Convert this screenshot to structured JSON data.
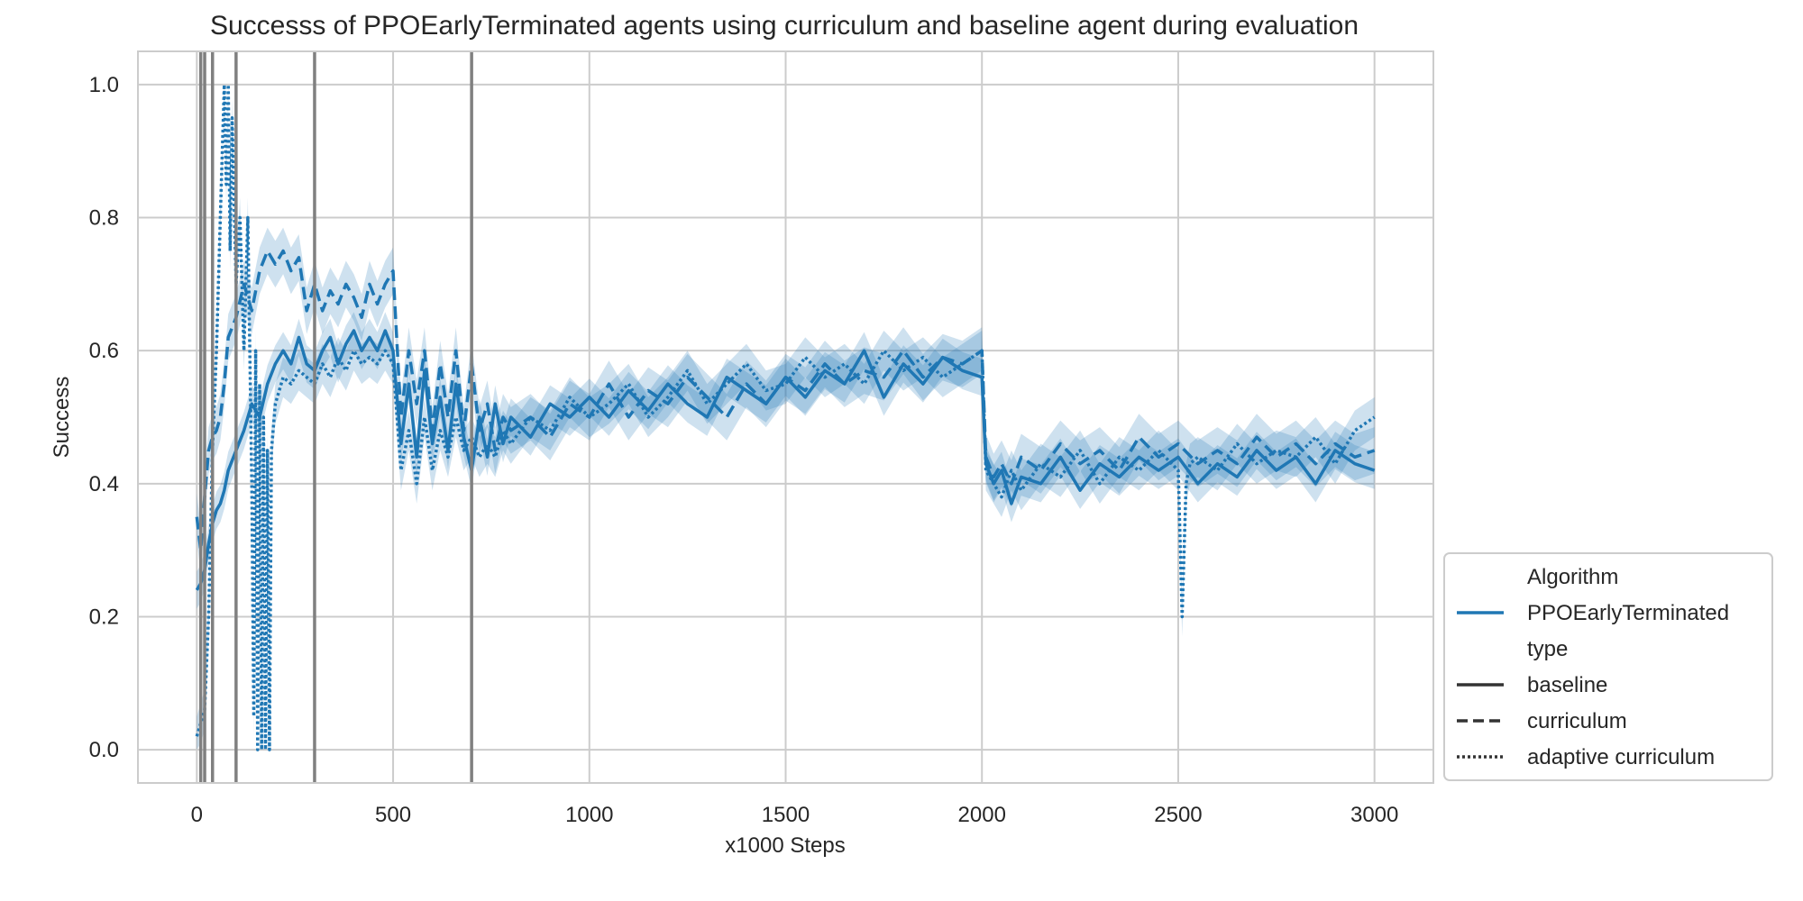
{
  "chart_data": {
    "type": "line",
    "title": "Successs of PPOEarlyTerminated agents using curriculum and baseline agent during evaluation",
    "xlabel": "x1000 Steps",
    "ylabel": "Success",
    "xlim": [
      -150,
      3150
    ],
    "ylim": [
      -0.05,
      1.05
    ],
    "xticks": [
      0,
      500,
      1000,
      1500,
      2000,
      2500,
      3000
    ],
    "xtick_labels": [
      "0",
      "500",
      "1000",
      "1500",
      "2000",
      "2500",
      "3000"
    ],
    "yticks": [
      0.0,
      0.2,
      0.4,
      0.6,
      0.8,
      1.0
    ],
    "ytick_labels": [
      "0.0",
      "0.2",
      "0.4",
      "0.6",
      "0.8",
      "1.0"
    ],
    "grid": true,
    "color": "#1f77b4",
    "vertical_lines": [
      10,
      20,
      40,
      100,
      300,
      700
    ],
    "legend": {
      "placement": "right",
      "entries": [
        {
          "label": "Algorithm",
          "kind": "header"
        },
        {
          "label": "PPOEarlyTerminated",
          "kind": "line",
          "color": "#1f77b4",
          "style": "solid"
        },
        {
          "label": "type",
          "kind": "header"
        },
        {
          "label": "baseline",
          "kind": "line",
          "color": "#333333",
          "style": "solid"
        },
        {
          "label": "curriculum",
          "kind": "line",
          "color": "#333333",
          "style": "dashed"
        },
        {
          "label": "adaptive curriculum",
          "kind": "line",
          "color": "#333333",
          "style": "dotted"
        }
      ]
    },
    "series": [
      {
        "name": "baseline",
        "style": "solid",
        "x": [
          0,
          10,
          20,
          30,
          40,
          50,
          60,
          70,
          80,
          100,
          120,
          140,
          160,
          180,
          200,
          220,
          240,
          260,
          280,
          300,
          320,
          340,
          360,
          380,
          400,
          420,
          440,
          460,
          480,
          500,
          520,
          540,
          560,
          580,
          600,
          620,
          640,
          660,
          680,
          700,
          720,
          740,
          760,
          780,
          800,
          850,
          900,
          950,
          1000,
          1050,
          1100,
          1150,
          1200,
          1250,
          1300,
          1350,
          1400,
          1450,
          1500,
          1550,
          1600,
          1650,
          1700,
          1750,
          1800,
          1850,
          1900,
          1950,
          2000,
          2010,
          2030,
          2050,
          2075,
          2100,
          2150,
          2200,
          2250,
          2300,
          2350,
          2400,
          2450,
          2500,
          2550,
          2600,
          2650,
          2700,
          2750,
          2800,
          2850,
          2900,
          2950,
          3000
        ],
        "y": [
          0.24,
          0.25,
          0.27,
          0.31,
          0.34,
          0.36,
          0.37,
          0.39,
          0.42,
          0.45,
          0.48,
          0.52,
          0.5,
          0.55,
          0.58,
          0.6,
          0.58,
          0.62,
          0.58,
          0.57,
          0.6,
          0.62,
          0.58,
          0.61,
          0.63,
          0.6,
          0.62,
          0.6,
          0.63,
          0.6,
          0.46,
          0.55,
          0.44,
          0.57,
          0.46,
          0.53,
          0.45,
          0.55,
          0.47,
          0.42,
          0.5,
          0.44,
          0.52,
          0.46,
          0.5,
          0.47,
          0.52,
          0.5,
          0.53,
          0.5,
          0.54,
          0.51,
          0.55,
          0.52,
          0.5,
          0.56,
          0.54,
          0.52,
          0.56,
          0.53,
          0.57,
          0.55,
          0.6,
          0.53,
          0.58,
          0.55,
          0.59,
          0.57,
          0.56,
          0.43,
          0.4,
          0.42,
          0.37,
          0.41,
          0.4,
          0.44,
          0.39,
          0.43,
          0.41,
          0.44,
          0.42,
          0.44,
          0.4,
          0.43,
          0.41,
          0.45,
          0.42,
          0.44,
          0.4,
          0.45,
          0.43,
          0.42
        ]
      },
      {
        "name": "curriculum",
        "style": "dashed",
        "x": [
          0,
          10,
          20,
          30,
          40,
          50,
          60,
          70,
          80,
          100,
          120,
          140,
          160,
          180,
          200,
          220,
          240,
          260,
          280,
          300,
          320,
          340,
          360,
          380,
          400,
          420,
          440,
          460,
          480,
          500,
          520,
          540,
          560,
          580,
          600,
          620,
          640,
          660,
          680,
          700,
          720,
          740,
          760,
          780,
          800,
          850,
          900,
          950,
          1000,
          1050,
          1100,
          1150,
          1200,
          1250,
          1300,
          1350,
          1400,
          1450,
          1500,
          1550,
          1600,
          1650,
          1700,
          1750,
          1800,
          1850,
          1900,
          1950,
          2000,
          2010,
          2030,
          2050,
          2075,
          2100,
          2150,
          2200,
          2250,
          2300,
          2350,
          2400,
          2450,
          2500,
          2550,
          2600,
          2650,
          2700,
          2750,
          2800,
          2850,
          2900,
          2950,
          3000
        ],
        "y": [
          0.35,
          0.3,
          0.38,
          0.45,
          0.47,
          0.48,
          0.5,
          0.55,
          0.62,
          0.65,
          0.7,
          0.66,
          0.72,
          0.75,
          0.73,
          0.75,
          0.72,
          0.74,
          0.66,
          0.7,
          0.66,
          0.69,
          0.67,
          0.7,
          0.68,
          0.65,
          0.7,
          0.67,
          0.7,
          0.72,
          0.5,
          0.6,
          0.52,
          0.6,
          0.48,
          0.58,
          0.5,
          0.6,
          0.48,
          0.58,
          0.48,
          0.52,
          0.45,
          0.5,
          0.48,
          0.5,
          0.47,
          0.52,
          0.5,
          0.55,
          0.5,
          0.54,
          0.52,
          0.56,
          0.53,
          0.5,
          0.55,
          0.52,
          0.56,
          0.54,
          0.58,
          0.55,
          0.57,
          0.56,
          0.6,
          0.56,
          0.59,
          0.58,
          0.6,
          0.44,
          0.41,
          0.43,
          0.4,
          0.44,
          0.42,
          0.46,
          0.43,
          0.45,
          0.42,
          0.47,
          0.44,
          0.46,
          0.43,
          0.45,
          0.43,
          0.47,
          0.44,
          0.46,
          0.43,
          0.46,
          0.44,
          0.45
        ]
      },
      {
        "name": "adaptive curriculum",
        "style": "dotted",
        "x": [
          0,
          10,
          20,
          30,
          40,
          50,
          60,
          70,
          75,
          80,
          85,
          90,
          100,
          110,
          120,
          130,
          140,
          145,
          150,
          155,
          160,
          165,
          170,
          175,
          180,
          185,
          190,
          200,
          220,
          240,
          260,
          280,
          300,
          320,
          340,
          360,
          380,
          400,
          420,
          440,
          460,
          480,
          500,
          520,
          540,
          560,
          580,
          600,
          620,
          640,
          660,
          680,
          700,
          720,
          740,
          760,
          780,
          800,
          850,
          900,
          950,
          1000,
          1050,
          1100,
          1150,
          1200,
          1250,
          1300,
          1350,
          1400,
          1450,
          1500,
          1550,
          1600,
          1650,
          1700,
          1750,
          1800,
          1850,
          1900,
          1950,
          2000,
          2010,
          2030,
          2050,
          2075,
          2100,
          2150,
          2200,
          2250,
          2300,
          2350,
          2400,
          2450,
          2500,
          2510,
          2520,
          2530,
          2550,
          2600,
          2650,
          2700,
          2750,
          2800,
          2850,
          2900,
          2950,
          3000
        ],
        "y": [
          0.02,
          0.04,
          0.06,
          0.2,
          0.45,
          0.6,
          0.8,
          1.0,
          0.85,
          1.0,
          0.75,
          0.95,
          0.7,
          0.8,
          0.6,
          0.8,
          0.4,
          0.05,
          0.6,
          0.0,
          0.55,
          0.0,
          0.5,
          0.0,
          0.45,
          0.0,
          0.45,
          0.52,
          0.56,
          0.55,
          0.57,
          0.56,
          0.55,
          0.58,
          0.56,
          0.59,
          0.57,
          0.6,
          0.58,
          0.59,
          0.58,
          0.6,
          0.58,
          0.42,
          0.48,
          0.4,
          0.5,
          0.42,
          0.48,
          0.44,
          0.5,
          0.45,
          0.47,
          0.44,
          0.46,
          0.44,
          0.48,
          0.46,
          0.5,
          0.48,
          0.53,
          0.5,
          0.52,
          0.55,
          0.5,
          0.53,
          0.57,
          0.52,
          0.55,
          0.58,
          0.54,
          0.55,
          0.59,
          0.56,
          0.58,
          0.55,
          0.6,
          0.57,
          0.59,
          0.56,
          0.58,
          0.6,
          0.42,
          0.4,
          0.38,
          0.42,
          0.39,
          0.43,
          0.41,
          0.45,
          0.4,
          0.44,
          0.42,
          0.45,
          0.42,
          0.2,
          0.4,
          0.43,
          0.44,
          0.42,
          0.46,
          0.43,
          0.45,
          0.44,
          0.47,
          0.43,
          0.48,
          0.5
        ]
      }
    ]
  }
}
